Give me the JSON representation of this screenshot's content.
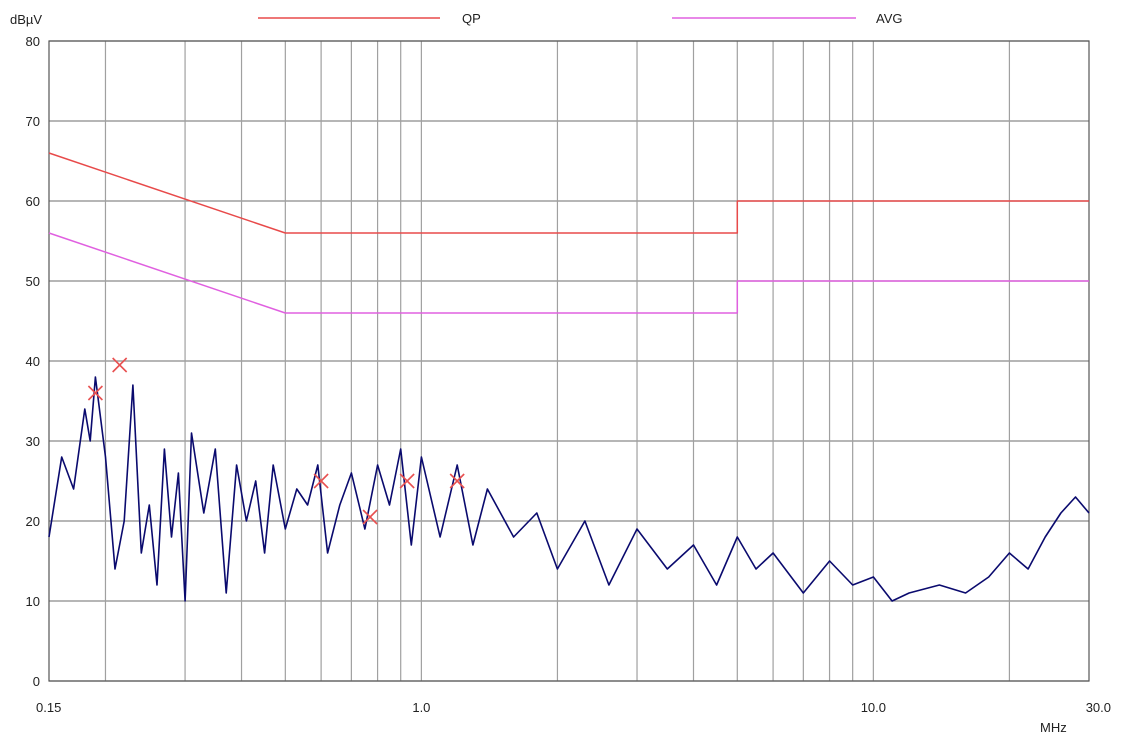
{
  "chart_data": {
    "type": "line",
    "title": "",
    "ylabel": "dBµV",
    "xlabel": "MHz",
    "x_scale": "log",
    "xlim": [
      0.15,
      30.0
    ],
    "ylim": [
      0,
      80
    ],
    "grid": true,
    "legend_placement": "top",
    "y_ticks": [
      0,
      10,
      20,
      30,
      40,
      50,
      60,
      70,
      80
    ],
    "x_tick_labels": [
      {
        "value": 0.15,
        "label": "0.15"
      },
      {
        "value": 1.0,
        "label": "1.0"
      },
      {
        "value": 10.0,
        "label": "10.0"
      },
      {
        "value": 30.0,
        "label": "30.0"
      }
    ],
    "x_gridlines": [
      0.2,
      0.3,
      0.4,
      0.5,
      0.6,
      0.7,
      0.8,
      0.9,
      1,
      2,
      3,
      4,
      5,
      6,
      7,
      8,
      9,
      10,
      20
    ],
    "series": [
      {
        "name": "QP",
        "color": "#e84a4a",
        "x": [
          0.15,
          0.5,
          0.5,
          5.0,
          5.0,
          30.0
        ],
        "y": [
          66,
          56,
          56,
          56,
          60,
          60
        ]
      },
      {
        "name": "AVG",
        "color": "#e060e0",
        "x": [
          0.15,
          0.5,
          0.5,
          5.0,
          5.0,
          30.0
        ],
        "y": [
          56,
          46,
          46,
          46,
          50,
          50
        ]
      },
      {
        "color": "#0a0a6e",
        "x": [
          0.15,
          0.16,
          0.17,
          0.18,
          0.185,
          0.19,
          0.2,
          0.21,
          0.22,
          0.23,
          0.24,
          0.25,
          0.26,
          0.27,
          0.28,
          0.29,
          0.3,
          0.31,
          0.33,
          0.35,
          0.37,
          0.39,
          0.41,
          0.43,
          0.45,
          0.47,
          0.5,
          0.53,
          0.56,
          0.59,
          0.62,
          0.66,
          0.7,
          0.75,
          0.8,
          0.85,
          0.9,
          0.95,
          1.0,
          1.1,
          1.2,
          1.3,
          1.4,
          1.6,
          1.8,
          2.0,
          2.3,
          2.6,
          3.0,
          3.5,
          4.0,
          4.5,
          5.0,
          5.5,
          6.0,
          7.0,
          8.0,
          9.0,
          10.0,
          11.0,
          12.0,
          14.0,
          16.0,
          18.0,
          20.0,
          22.0,
          24.0,
          26.0,
          28.0,
          30.0
        ],
        "y": [
          18,
          28,
          24,
          34,
          30,
          38,
          28,
          14,
          20,
          37,
          16,
          22,
          12,
          29,
          18,
          26,
          10,
          31,
          21,
          29,
          11,
          27,
          20,
          25,
          16,
          27,
          19,
          24,
          22,
          27,
          16,
          22,
          26,
          19,
          27,
          22,
          29,
          17,
          28,
          18,
          27,
          17,
          24,
          18,
          21,
          14,
          20,
          12,
          19,
          14,
          17,
          12,
          18,
          14,
          16,
          11,
          15,
          12,
          13,
          10,
          11,
          12,
          11,
          13,
          16,
          14,
          18,
          21,
          23,
          21
        ]
      }
    ],
    "markers": {
      "symbol": "x",
      "color": "#e85050",
      "x": [
        0.19,
        0.215,
        0.6,
        0.77,
        0.93,
        1.2
      ],
      "y": [
        36,
        39.5,
        25,
        20.5,
        25,
        25
      ]
    }
  }
}
